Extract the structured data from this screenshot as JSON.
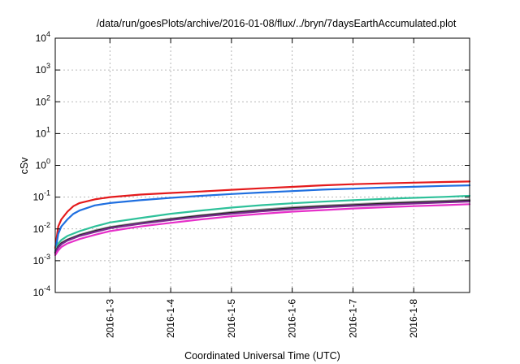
{
  "chart_data": {
    "type": "line",
    "title": "/data/run/goesPlots/archive/2016-01-08/flux/../bryn/7daysEarthAccumulated.plot",
    "xlabel": "Coordinated Universal Time (UTC)",
    "ylabel": "cSv",
    "yscale": "log",
    "ylim": [
      0.0001,
      10000
    ],
    "xlim": [
      2.1,
      8.92
    ],
    "grid": true,
    "legend": "none",
    "x_ticks": [
      {
        "value": 3,
        "label": "2016-1-3"
      },
      {
        "value": 4,
        "label": "2016-1-4"
      },
      {
        "value": 5,
        "label": "2016-1-5"
      },
      {
        "value": 6,
        "label": "2016-1-6"
      },
      {
        "value": 7,
        "label": "2016-1-7"
      },
      {
        "value": 8,
        "label": "2016-1-8"
      }
    ],
    "y_ticks": [
      {
        "value": 0.0001,
        "base": "10",
        "exp": "-4"
      },
      {
        "value": 0.001,
        "base": "10",
        "exp": "-3"
      },
      {
        "value": 0.01,
        "base": "10",
        "exp": "-2"
      },
      {
        "value": 0.1,
        "base": "10",
        "exp": "-1"
      },
      {
        "value": 1,
        "base": "10",
        "exp": "0"
      },
      {
        "value": 10,
        "base": "10",
        "exp": "1"
      },
      {
        "value": 100,
        "base": "10",
        "exp": "2"
      },
      {
        "value": 1000,
        "base": "10",
        "exp": "3"
      },
      {
        "value": 10000,
        "base": "10",
        "exp": "4"
      }
    ],
    "series": [
      {
        "color": "#e41a1c",
        "points": [
          [
            2.1,
            0.0025
          ],
          [
            2.15,
            0.012
          ],
          [
            2.2,
            0.02
          ],
          [
            2.3,
            0.035
          ],
          [
            2.4,
            0.052
          ],
          [
            2.5,
            0.065
          ],
          [
            2.75,
            0.085
          ],
          [
            3,
            0.1
          ],
          [
            3.5,
            0.12
          ],
          [
            4,
            0.135
          ],
          [
            4.5,
            0.15
          ],
          [
            5,
            0.17
          ],
          [
            5.5,
            0.19
          ],
          [
            6,
            0.21
          ],
          [
            6.5,
            0.235
          ],
          [
            7,
            0.255
          ],
          [
            7.5,
            0.27
          ],
          [
            8,
            0.285
          ],
          [
            8.5,
            0.3
          ],
          [
            8.92,
            0.31
          ]
        ]
      },
      {
        "color": "#1f6fe0",
        "points": [
          [
            2.1,
            0.002
          ],
          [
            2.15,
            0.007
          ],
          [
            2.2,
            0.012
          ],
          [
            2.3,
            0.02
          ],
          [
            2.4,
            0.03
          ],
          [
            2.5,
            0.038
          ],
          [
            2.75,
            0.055
          ],
          [
            3,
            0.065
          ],
          [
            3.5,
            0.08
          ],
          [
            4,
            0.095
          ],
          [
            4.5,
            0.11
          ],
          [
            5,
            0.125
          ],
          [
            5.5,
            0.14
          ],
          [
            6,
            0.155
          ],
          [
            6.5,
            0.172
          ],
          [
            7,
            0.185
          ],
          [
            7.5,
            0.2
          ],
          [
            8,
            0.212
          ],
          [
            8.5,
            0.225
          ],
          [
            8.92,
            0.235
          ]
        ]
      },
      {
        "color": "#2ec19a",
        "points": [
          [
            2.1,
            0.002
          ],
          [
            2.15,
            0.0035
          ],
          [
            2.2,
            0.0045
          ],
          [
            2.3,
            0.006
          ],
          [
            2.5,
            0.0085
          ],
          [
            2.75,
            0.012
          ],
          [
            3,
            0.016
          ],
          [
            3.5,
            0.022
          ],
          [
            4,
            0.03
          ],
          [
            4.5,
            0.038
          ],
          [
            5,
            0.047
          ],
          [
            5.5,
            0.056
          ],
          [
            6,
            0.064
          ],
          [
            6.5,
            0.072
          ],
          [
            7,
            0.08
          ],
          [
            7.5,
            0.088
          ],
          [
            8,
            0.095
          ],
          [
            8.5,
            0.102
          ],
          [
            8.92,
            0.11
          ]
        ]
      },
      {
        "color": "#999999",
        "points": [
          [
            2.1,
            0.0019
          ],
          [
            2.15,
            0.0029
          ],
          [
            2.2,
            0.0037
          ],
          [
            2.3,
            0.0047
          ],
          [
            2.5,
            0.0066
          ],
          [
            2.75,
            0.009
          ],
          [
            3,
            0.0115
          ],
          [
            3.5,
            0.016
          ],
          [
            4,
            0.021
          ],
          [
            4.5,
            0.027
          ],
          [
            5,
            0.034
          ],
          [
            5.5,
            0.041
          ],
          [
            6,
            0.048
          ],
          [
            6.5,
            0.054
          ],
          [
            7,
            0.06
          ],
          [
            7.5,
            0.066
          ],
          [
            8,
            0.071
          ],
          [
            8.5,
            0.077
          ],
          [
            8.92,
            0.083
          ]
        ]
      },
      {
        "color": "#222222",
        "points": [
          [
            2.1,
            0.0018
          ],
          [
            2.15,
            0.0028
          ],
          [
            2.2,
            0.0035
          ],
          [
            2.3,
            0.0045
          ],
          [
            2.5,
            0.0063
          ],
          [
            2.75,
            0.0085
          ],
          [
            3,
            0.011
          ],
          [
            3.5,
            0.015
          ],
          [
            4,
            0.02
          ],
          [
            4.5,
            0.026
          ],
          [
            5,
            0.032
          ],
          [
            5.5,
            0.038
          ],
          [
            6,
            0.045
          ],
          [
            6.5,
            0.051
          ],
          [
            7,
            0.056
          ],
          [
            7.5,
            0.062
          ],
          [
            8,
            0.067
          ],
          [
            8.5,
            0.072
          ],
          [
            8.92,
            0.078
          ]
        ]
      },
      {
        "color": "#7b2a8f",
        "points": [
          [
            2.1,
            0.0017
          ],
          [
            2.15,
            0.0026
          ],
          [
            2.2,
            0.0033
          ],
          [
            2.3,
            0.0043
          ],
          [
            2.5,
            0.006
          ],
          [
            2.75,
            0.008
          ],
          [
            3,
            0.0105
          ],
          [
            3.5,
            0.0145
          ],
          [
            4,
            0.019
          ],
          [
            4.5,
            0.0245
          ],
          [
            5,
            0.03
          ],
          [
            5.5,
            0.036
          ],
          [
            6,
            0.042
          ],
          [
            6.5,
            0.048
          ],
          [
            7,
            0.053
          ],
          [
            7.5,
            0.058
          ],
          [
            8,
            0.063
          ],
          [
            8.5,
            0.068
          ],
          [
            8.92,
            0.073
          ]
        ]
      },
      {
        "color": "#e62fc9",
        "points": [
          [
            2.1,
            0.0015
          ],
          [
            2.15,
            0.0021
          ],
          [
            2.2,
            0.0027
          ],
          [
            2.3,
            0.0035
          ],
          [
            2.5,
            0.0048
          ],
          [
            2.75,
            0.0065
          ],
          [
            3,
            0.0085
          ],
          [
            3.5,
            0.012
          ],
          [
            4,
            0.0155
          ],
          [
            4.5,
            0.02
          ],
          [
            5,
            0.025
          ],
          [
            5.5,
            0.03
          ],
          [
            6,
            0.035
          ],
          [
            6.5,
            0.039
          ],
          [
            7,
            0.044
          ],
          [
            7.5,
            0.048
          ],
          [
            8,
            0.052
          ],
          [
            8.5,
            0.056
          ],
          [
            8.92,
            0.06
          ]
        ]
      }
    ]
  }
}
